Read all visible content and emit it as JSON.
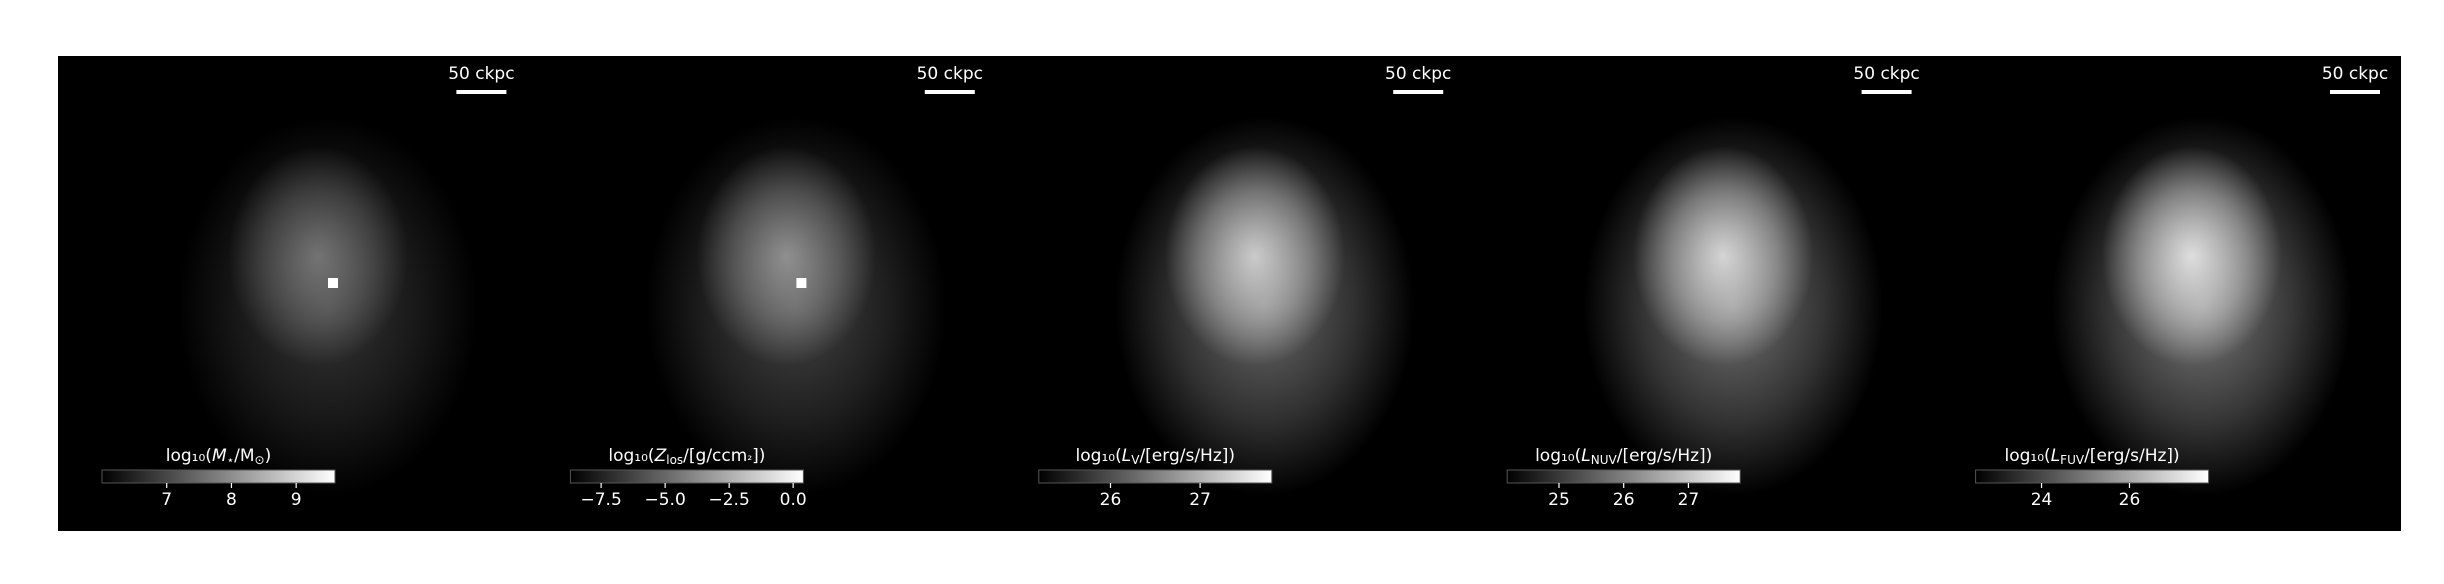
{
  "chart_data": [
    {
      "type": "image",
      "scalebar": "50 ckpc",
      "colorbar": {
        "label": {
          "pre": "log₁₀(",
          "sym": "M",
          "sub": "⋆",
          "mid": "/M",
          "sub2": "⊙",
          "post": ")"
        },
        "clim": [
          6.0,
          9.6
        ],
        "ticks": [
          7,
          8,
          9
        ]
      }
    },
    {
      "type": "image",
      "scalebar": "50 ckpc",
      "colorbar": {
        "label": {
          "pre": "log₁₀(",
          "sym": "Z",
          "sub": "los",
          "mid": "/[g/ccm",
          "sub2": "²",
          "post": "])"
        },
        "clim": [
          -8.7,
          0.4
        ],
        "ticks": [
          {
            "value": -7.5,
            "label": "−7.5"
          },
          {
            "value": -5.0,
            "label": "−5.0"
          },
          {
            "value": -2.5,
            "label": "−2.5"
          },
          {
            "value": 0,
            "label": "0.0"
          }
        ]
      }
    },
    {
      "type": "image",
      "scalebar": "50 ckpc",
      "colorbar": {
        "label": {
          "pre": "log₁₀(",
          "sym": "L",
          "sub": "V",
          "mid": "/[erg/s/Hz])"
        },
        "clim": [
          25.2,
          27.8
        ],
        "ticks": [
          26,
          27
        ]
      }
    },
    {
      "type": "image",
      "scalebar": "50 ckpc",
      "colorbar": {
        "label": {
          "pre": "log₁₀(",
          "sym": "L",
          "sub": "NUV",
          "mid": "/[erg/s/Hz])"
        },
        "clim": [
          24.2,
          27.8
        ],
        "ticks": [
          25,
          26,
          27
        ]
      }
    },
    {
      "type": "image",
      "scalebar": "50 ckpc",
      "colorbar": {
        "label": {
          "pre": "log₁₀(",
          "sym": "L",
          "sub": "FUV",
          "mid": "/[erg/s/Hz])"
        },
        "clim": [
          22.5,
          27.8
        ],
        "ticks": [
          24,
          26
        ]
      }
    }
  ]
}
